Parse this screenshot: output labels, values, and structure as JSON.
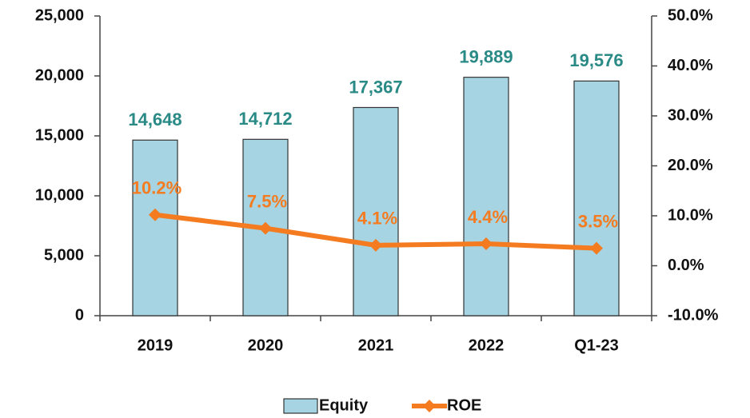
{
  "chart_data": {
    "type": "bar",
    "categories": [
      "2019",
      "2020",
      "2021",
      "2022",
      "Q1-23"
    ],
    "series": [
      {
        "name": "Equity",
        "color": "#a6d4e2",
        "values": [
          14648,
          14712,
          17367,
          19889,
          19576
        ],
        "value_labels": [
          "14,648",
          "14,712",
          "17,367",
          "19,889",
          "19,576"
        ]
      },
      {
        "name": "ROE",
        "type": "line",
        "axis": "y2",
        "color": "#f47b20",
        "values": [
          10.2,
          7.5,
          4.1,
          4.4,
          3.5
        ],
        "value_labels": [
          "10.2%",
          "7.5%",
          "4.1%",
          "4.4%",
          "3.5%"
        ]
      }
    ],
    "ylim": [
      0,
      25000
    ],
    "yticks": [
      0,
      {
        "value": 5000,
        "label": "5,000"
      },
      {
        "value": 10000,
        "label": "10,000"
      },
      {
        "value": 15000,
        "label": "15,000"
      },
      {
        "value": 20000,
        "label": "20,000"
      },
      {
        "value": 25000,
        "label": "25,000"
      }
    ],
    "y2lim": [
      -10,
      50
    ],
    "y2ticks": [
      {
        "value": -10,
        "label": "-10.0%"
      },
      {
        "value": 0,
        "label": "0.0%"
      },
      {
        "value": 10,
        "label": "10.0%"
      },
      {
        "value": 20,
        "label": "20.0%"
      },
      {
        "value": 30,
        "label": "30.0%"
      },
      {
        "value": 40,
        "label": "40.0%"
      },
      {
        "value": 50,
        "label": "50.0%"
      }
    ],
    "legend": "bottom"
  }
}
